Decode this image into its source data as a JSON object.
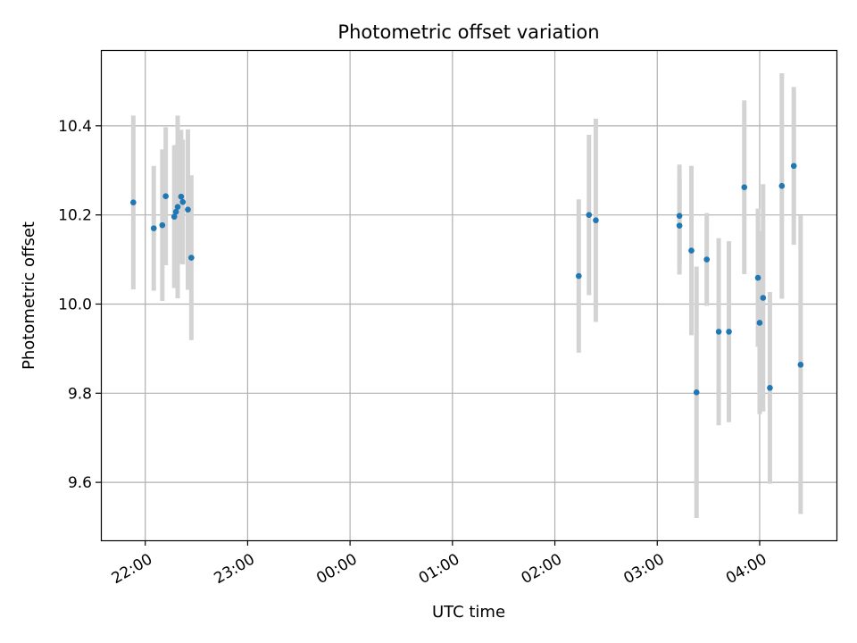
{
  "chart_data": {
    "type": "scatter",
    "title": "Photometric offset variation",
    "xlabel": "UTC time",
    "ylabel": "Photometric offset",
    "xlim": [
      "21:34",
      "04:45"
    ],
    "ylim": [
      9.47,
      10.57
    ],
    "x_ticks": [
      "22:00",
      "23:00",
      "00:00",
      "01:00",
      "02:00",
      "03:00",
      "04:00"
    ],
    "y_ticks": [
      9.6,
      9.8,
      10.0,
      10.2,
      10.4
    ],
    "grid": true,
    "colors": {
      "points": "#1f77b4",
      "error_bars": "#d3d3d3",
      "grid": "#b0b0b0"
    },
    "points": [
      {
        "x": "21:53",
        "y": 10.228,
        "err": 0.195
      },
      {
        "x": "22:05",
        "y": 10.17,
        "err": 0.14
      },
      {
        "x": "22:10",
        "y": 10.177,
        "err": 0.17
      },
      {
        "x": "22:12",
        "y": 10.242,
        "err": 0.155
      },
      {
        "x": "22:17",
        "y": 10.196,
        "err": 0.16
      },
      {
        "x": "22:18",
        "y": 10.207,
        "err": 0.15
      },
      {
        "x": "22:19",
        "y": 10.218,
        "err": 0.205
      },
      {
        "x": "22:21",
        "y": 10.241,
        "err": 0.15
      },
      {
        "x": "22:22",
        "y": 10.229,
        "err": 0.14
      },
      {
        "x": "22:25",
        "y": 10.212,
        "err": 0.18
      },
      {
        "x": "22:27",
        "y": 10.104,
        "err": 0.185
      },
      {
        "x": "02:14",
        "y": 10.063,
        "err": 0.172
      },
      {
        "x": "02:20",
        "y": 10.2,
        "err": 0.18
      },
      {
        "x": "02:24",
        "y": 10.188,
        "err": 0.228
      },
      {
        "x": "03:13",
        "y": 10.198,
        "err": 0.115
      },
      {
        "x": "03:13",
        "y": 10.176,
        "err": 0.11
      },
      {
        "x": "03:20",
        "y": 10.12,
        "err": 0.19
      },
      {
        "x": "03:23",
        "y": 9.802,
        "err": 0.282
      },
      {
        "x": "03:29",
        "y": 10.1,
        "err": 0.104
      },
      {
        "x": "03:36",
        "y": 9.938,
        "err": 0.21
      },
      {
        "x": "03:42",
        "y": 9.938,
        "err": 0.203
      },
      {
        "x": "03:51",
        "y": 10.262,
        "err": 0.195
      },
      {
        "x": "03:59",
        "y": 10.059,
        "err": 0.155
      },
      {
        "x": "04:00",
        "y": 9.958,
        "err": 0.205
      },
      {
        "x": "04:02",
        "y": 10.014,
        "err": 0.255
      },
      {
        "x": "04:06",
        "y": 9.812,
        "err": 0.215
      },
      {
        "x": "04:13",
        "y": 10.265,
        "err": 0.253
      },
      {
        "x": "04:20",
        "y": 10.31,
        "err": 0.177
      },
      {
        "x": "04:24",
        "y": 9.864,
        "err": 0.335
      }
    ]
  }
}
